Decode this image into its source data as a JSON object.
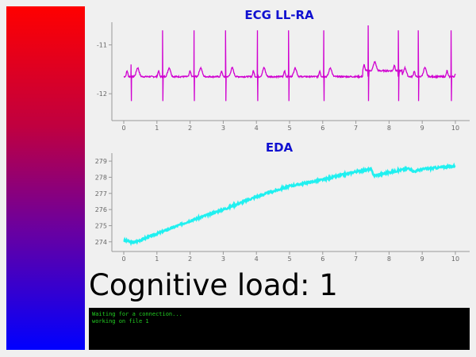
{
  "gradient": {
    "top_color": "#ff0000",
    "bottom_color": "#0000ff"
  },
  "status": {
    "text": "Cognitive load: 1"
  },
  "console": {
    "lines": [
      "Waiting for a connection...",
      "working on file 1"
    ],
    "color": "#22cc22"
  },
  "chart_data": [
    {
      "type": "line",
      "title": "ECG LL-RA",
      "xlim": [
        0,
        10
      ],
      "ylim": [
        -12.55,
        -10.6
      ],
      "xticks": [
        "0",
        "1",
        "2",
        "3",
        "4",
        "5",
        "6",
        "7",
        "8",
        "9",
        "10"
      ],
      "yticks": [
        "-11",
        "-12"
      ],
      "color": "#d000d0",
      "title_color": "#1010d0",
      "grid": false,
      "series": [
        {
          "baseline": -11.65,
          "beats": [
            {
              "x": 0.22,
              "peak": -11.4
            },
            {
              "x": 1.17,
              "peak": -10.7
            },
            {
              "x": 2.12,
              "peak": -10.7
            },
            {
              "x": 3.07,
              "peak": -10.7
            },
            {
              "x": 4.03,
              "peak": -10.7
            },
            {
              "x": 4.97,
              "peak": -10.7
            },
            {
              "x": 6.03,
              "peak": -10.7
            },
            {
              "x": 7.37,
              "peak": -10.6
            },
            {
              "x": 8.28,
              "peak": -10.7
            },
            {
              "x": 8.88,
              "peak": -10.7
            },
            {
              "x": 9.87,
              "peak": -10.7
            }
          ],
          "trough": -12.15
        }
      ]
    },
    {
      "type": "line",
      "title": "EDA",
      "xlim": [
        0,
        10
      ],
      "ylim": [
        273.4,
        279.3
      ],
      "xticks": [
        "0",
        "1",
        "2",
        "3",
        "4",
        "5",
        "6",
        "7",
        "8",
        "9",
        "10"
      ],
      "yticks": [
        "274",
        "275",
        "276",
        "277",
        "278",
        "279"
      ],
      "color": "#20f0f0",
      "title_color": "#1010d0",
      "grid": false,
      "series": [
        {
          "x": [
            0,
            0.3,
            1,
            2,
            3,
            4,
            5,
            6,
            7,
            7.45,
            7.55,
            8,
            8.6,
            8.75,
            9,
            10
          ],
          "y": [
            274.1,
            273.95,
            274.5,
            275.3,
            276.0,
            276.8,
            277.45,
            277.85,
            278.35,
            278.5,
            278.1,
            278.3,
            278.55,
            278.35,
            278.5,
            278.7
          ]
        }
      ]
    }
  ]
}
